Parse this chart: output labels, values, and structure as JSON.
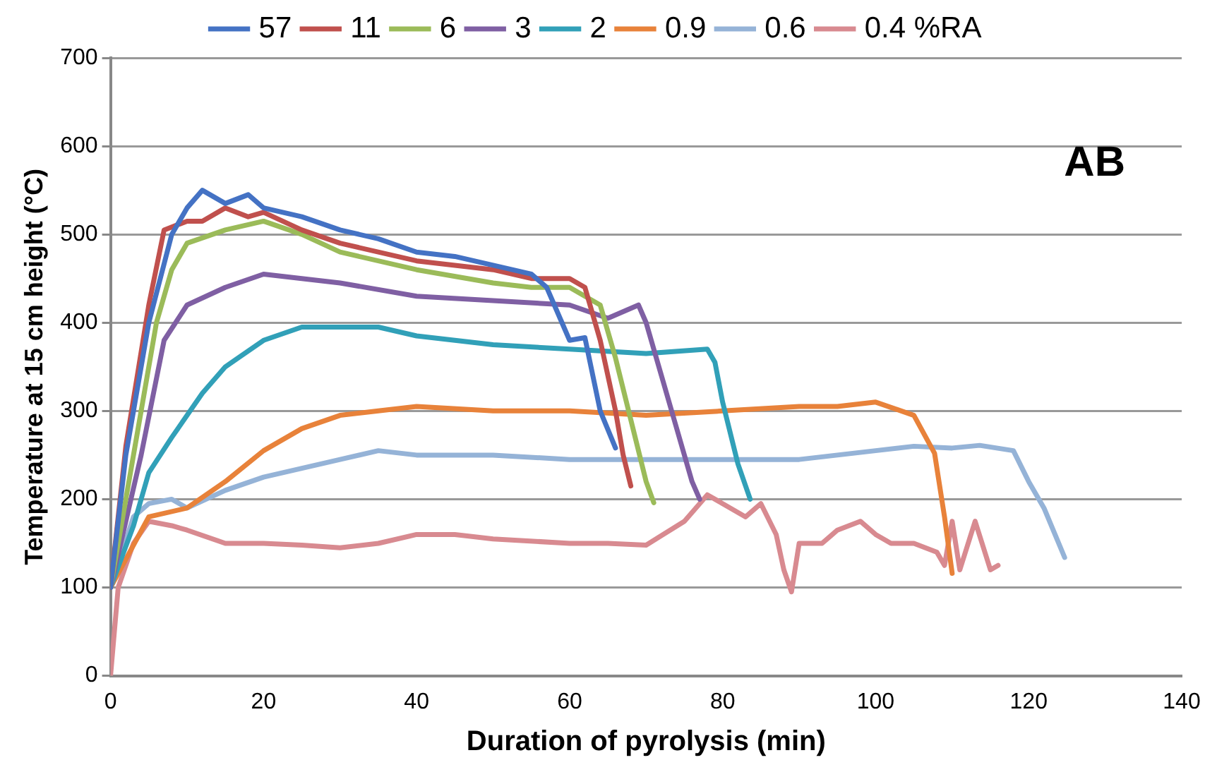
{
  "chart_data": {
    "type": "line",
    "xlabel": "Duration of pyrolysis (min)",
    "ylabel": "Temperature at 15 cm height (°C)",
    "annotations": [
      "AB"
    ],
    "xlim": [
      0,
      140
    ],
    "xticks": [
      0,
      20,
      40,
      60,
      80,
      100,
      120,
      140
    ],
    "ylim": [
      0,
      700
    ],
    "yticks": [
      0,
      100,
      200,
      300,
      400,
      500,
      600,
      700
    ],
    "grid": "y",
    "legend": "top",
    "marker": "none",
    "line_style": "solid",
    "series": [
      {
        "name": "57",
        "color": "#4472c4",
        "x": [
          0,
          2,
          5,
          8,
          10,
          12,
          15,
          18,
          20,
          25,
          30,
          35,
          40,
          45,
          50,
          55,
          57,
          59,
          60,
          62,
          64,
          66
        ],
        "values": [
          100,
          250,
          400,
          500,
          530,
          550,
          535,
          545,
          530,
          520,
          505,
          495,
          480,
          475,
          465,
          455,
          440,
          400,
          380,
          383,
          300,
          258
        ]
      },
      {
        "name": "11",
        "color": "#c0504d",
        "x": [
          0,
          2,
          5,
          7,
          10,
          12,
          15,
          18,
          20,
          25,
          30,
          40,
          50,
          55,
          60,
          62,
          64,
          66,
          67,
          68
        ],
        "values": [
          100,
          260,
          420,
          505,
          515,
          515,
          530,
          520,
          525,
          505,
          490,
          470,
          460,
          450,
          450,
          440,
          380,
          300,
          250,
          215
        ]
      },
      {
        "name": "6",
        "color": "#9bbb59",
        "x": [
          0,
          3,
          6,
          8,
          10,
          15,
          20,
          25,
          30,
          40,
          50,
          55,
          60,
          62,
          64,
          66,
          68,
          70,
          71
        ],
        "values": [
          100,
          250,
          400,
          460,
          490,
          505,
          515,
          500,
          480,
          460,
          445,
          440,
          440,
          430,
          420,
          360,
          290,
          220,
          196
        ]
      },
      {
        "name": "3",
        "color": "#7f5fa3",
        "x": [
          0,
          4,
          7,
          10,
          15,
          20,
          25,
          30,
          40,
          50,
          60,
          65,
          69,
          70,
          72,
          74,
          76,
          77
        ],
        "values": [
          100,
          250,
          380,
          420,
          440,
          455,
          450,
          445,
          430,
          425,
          420,
          405,
          420,
          400,
          340,
          280,
          220,
          200
        ]
      },
      {
        "name": "2",
        "color": "#31a0b8",
        "x": [
          0,
          3,
          5,
          8,
          12,
          15,
          20,
          25,
          30,
          35,
          40,
          50,
          60,
          70,
          78,
          79,
          80,
          82,
          83.6
        ],
        "values": [
          100,
          170,
          230,
          270,
          320,
          350,
          380,
          395,
          395,
          395,
          385,
          375,
          370,
          365,
          370,
          355,
          310,
          240,
          200
        ]
      },
      {
        "name": "0.9",
        "color": "#e8823a",
        "x": [
          0,
          5,
          10,
          15,
          20,
          25,
          30,
          35,
          40,
          50,
          60,
          70,
          80,
          90,
          95,
          100,
          105,
          107.7,
          109,
          110
        ],
        "values": [
          100,
          180,
          190,
          220,
          255,
          280,
          295,
          300,
          305,
          300,
          300,
          295,
          300,
          305,
          305,
          310,
          295,
          252,
          180,
          116
        ]
      },
      {
        "name": "0.6",
        "color": "#95b3d7",
        "x": [
          0,
          3,
          5,
          8,
          10,
          15,
          20,
          25,
          30,
          35,
          40,
          50,
          60,
          70,
          80,
          90,
          100,
          105,
          110,
          113.6,
          118,
          120,
          122,
          124.7
        ],
        "values": [
          100,
          180,
          195,
          200,
          190,
          210,
          225,
          235,
          245,
          255,
          250,
          250,
          245,
          245,
          245,
          245,
          255,
          260,
          258,
          261,
          255,
          220,
          190,
          134
        ]
      },
      {
        "name": "0.4 %RA",
        "color": "#d88a90",
        "x": [
          0,
          1,
          3,
          5,
          8,
          10,
          15,
          20,
          25,
          30,
          35,
          40,
          45,
          50,
          60,
          65,
          70,
          75,
          78,
          80,
          83,
          85,
          87,
          88,
          89,
          90,
          93,
          95,
          98,
          100,
          102,
          105,
          108,
          109,
          110,
          111,
          113,
          115,
          116
        ],
        "values": [
          0,
          100,
          150,
          175,
          170,
          165,
          150,
          150,
          148,
          145,
          150,
          160,
          160,
          155,
          150,
          150,
          148,
          175,
          205,
          195,
          180,
          195,
          160,
          120,
          95,
          150,
          150,
          165,
          175,
          160,
          150,
          150,
          140,
          125,
          175,
          120,
          175,
          120,
          125
        ]
      }
    ]
  }
}
